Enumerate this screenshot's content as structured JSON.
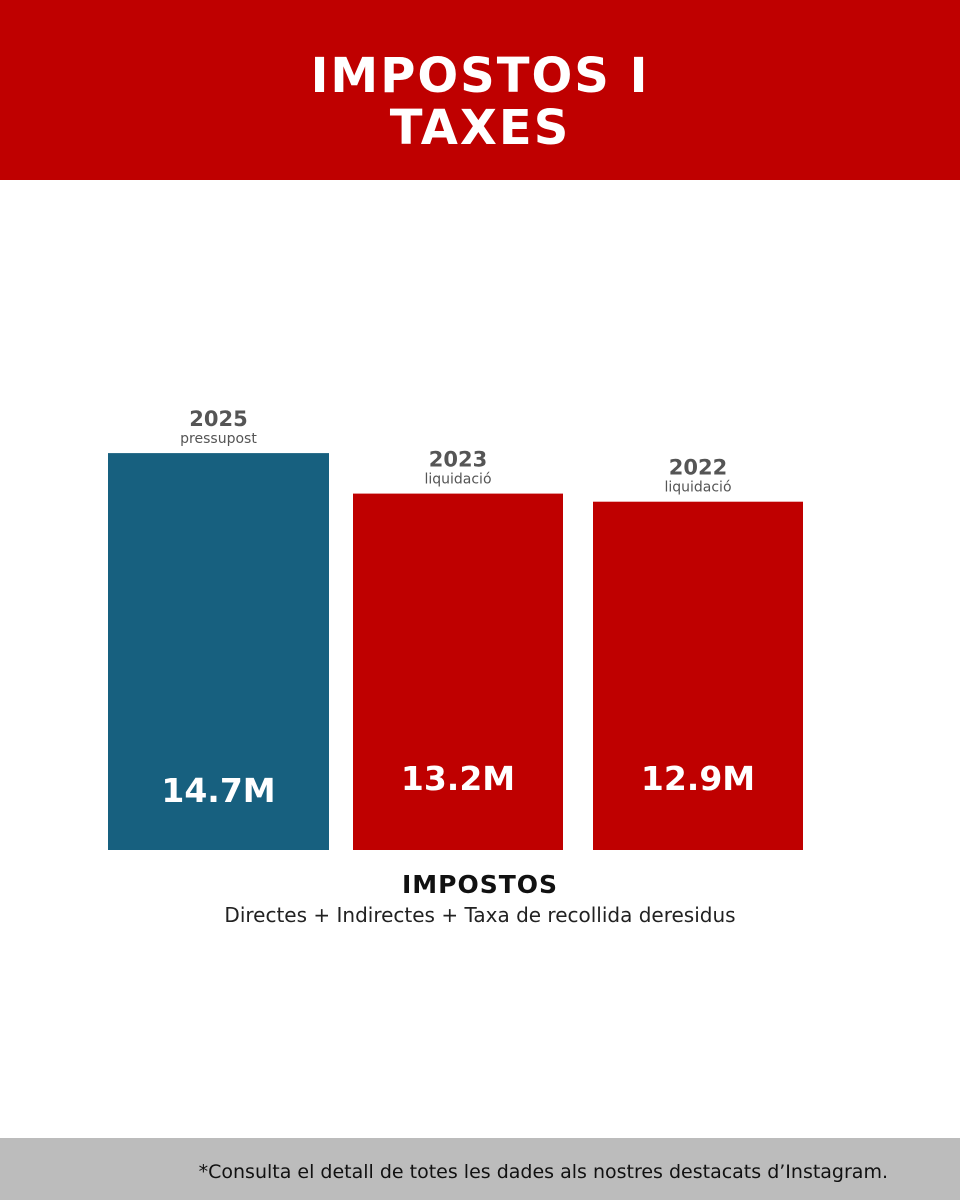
{
  "header": {
    "title": "IMPOSTOS I\nTAXES",
    "background": "#bf0000"
  },
  "chart_data": {
    "type": "bar",
    "title": "IMPOSTOS I TAXES",
    "xlabel": "IMPOSTOS",
    "xlabel_sub": "Directes + Indirectes + Taxa de recollida deresidus",
    "categories": [
      {
        "year": "2025",
        "sublabel": "pressupost"
      },
      {
        "year": "2023",
        "sublabel": "liquidació"
      },
      {
        "year": "2022",
        "sublabel": "liquidació"
      }
    ],
    "values": [
      14.7,
      13.2,
      12.9
    ],
    "value_labels": [
      "14.7M",
      "13.2M",
      "12.9M"
    ],
    "colors": [
      "#17607f",
      "#bf0000",
      "#bf0000"
    ],
    "unit": "M",
    "grid": false,
    "legend": "none"
  },
  "footer": {
    "note": "*Consulta el detall de totes les dades als nostres destacats d’Instagram."
  }
}
